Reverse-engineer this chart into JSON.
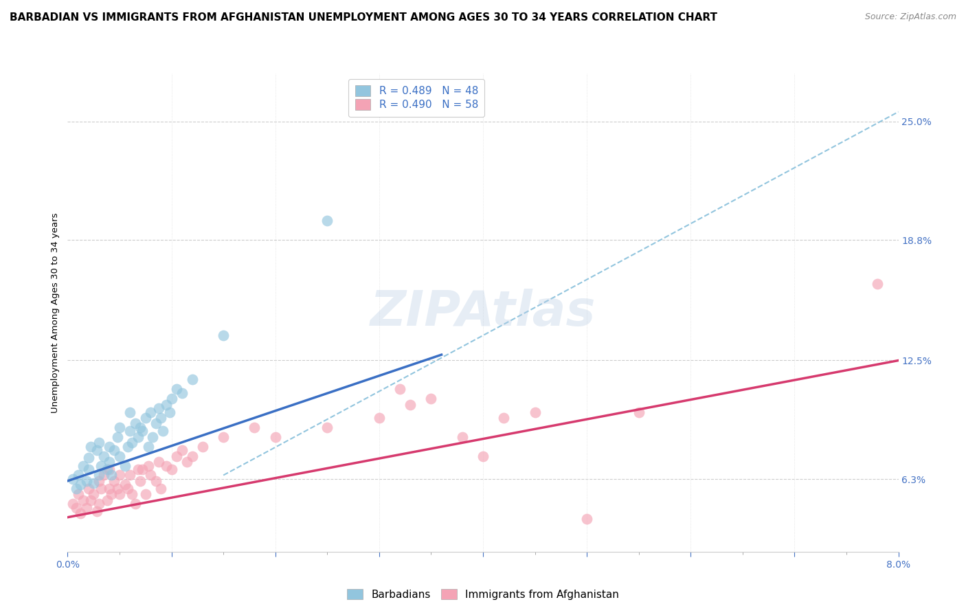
{
  "title": "BARBADIAN VS IMMIGRANTS FROM AFGHANISTAN UNEMPLOYMENT AMONG AGES 30 TO 34 YEARS CORRELATION CHART",
  "source": "Source: ZipAtlas.com",
  "xmin": 0.0,
  "xmax": 8.0,
  "ymin": 2.5,
  "ymax": 27.5,
  "ylabel_vals": [
    6.3,
    12.5,
    18.8,
    25.0
  ],
  "ylabel_label": "Unemployment Among Ages 30 to 34 years",
  "blue_color": "#92c5de",
  "pink_color": "#f4a3b5",
  "blue_line_color": "#3a6fc4",
  "pink_line_color": "#d63a6e",
  "dashed_line_color": "#92c5de",
  "legend_label_blue": "Barbadians",
  "legend_label_pink": "Immigrants from Afghanistan",
  "tick_color": "#4472c4",
  "title_fontsize": 11,
  "axis_label_fontsize": 9.5,
  "tick_fontsize": 10,
  "legend_fontsize": 11,
  "blue_scatter": [
    [
      0.05,
      6.3
    ],
    [
      0.08,
      5.8
    ],
    [
      0.1,
      6.5
    ],
    [
      0.12,
      6.0
    ],
    [
      0.15,
      7.0
    ],
    [
      0.18,
      6.2
    ],
    [
      0.2,
      6.8
    ],
    [
      0.2,
      7.4
    ],
    [
      0.22,
      8.0
    ],
    [
      0.25,
      6.1
    ],
    [
      0.28,
      7.8
    ],
    [
      0.3,
      6.5
    ],
    [
      0.3,
      8.2
    ],
    [
      0.32,
      7.0
    ],
    [
      0.35,
      7.5
    ],
    [
      0.38,
      6.8
    ],
    [
      0.4,
      8.0
    ],
    [
      0.4,
      7.2
    ],
    [
      0.42,
      6.5
    ],
    [
      0.45,
      7.8
    ],
    [
      0.48,
      8.5
    ],
    [
      0.5,
      7.5
    ],
    [
      0.5,
      9.0
    ],
    [
      0.55,
      7.0
    ],
    [
      0.58,
      8.0
    ],
    [
      0.6,
      8.8
    ],
    [
      0.6,
      9.8
    ],
    [
      0.62,
      8.2
    ],
    [
      0.65,
      9.2
    ],
    [
      0.68,
      8.5
    ],
    [
      0.7,
      9.0
    ],
    [
      0.72,
      8.8
    ],
    [
      0.75,
      9.5
    ],
    [
      0.78,
      8.0
    ],
    [
      0.8,
      9.8
    ],
    [
      0.82,
      8.5
    ],
    [
      0.85,
      9.2
    ],
    [
      0.88,
      10.0
    ],
    [
      0.9,
      9.5
    ],
    [
      0.92,
      8.8
    ],
    [
      0.95,
      10.2
    ],
    [
      0.98,
      9.8
    ],
    [
      1.0,
      10.5
    ],
    [
      1.05,
      11.0
    ],
    [
      1.1,
      10.8
    ],
    [
      1.2,
      11.5
    ],
    [
      1.5,
      13.8
    ],
    [
      2.5,
      19.8
    ]
  ],
  "pink_scatter": [
    [
      0.05,
      5.0
    ],
    [
      0.08,
      4.8
    ],
    [
      0.1,
      5.5
    ],
    [
      0.12,
      4.5
    ],
    [
      0.15,
      5.2
    ],
    [
      0.18,
      4.8
    ],
    [
      0.2,
      5.8
    ],
    [
      0.22,
      5.2
    ],
    [
      0.25,
      5.5
    ],
    [
      0.28,
      4.6
    ],
    [
      0.3,
      6.2
    ],
    [
      0.3,
      5.0
    ],
    [
      0.32,
      5.8
    ],
    [
      0.35,
      6.5
    ],
    [
      0.38,
      5.2
    ],
    [
      0.4,
      6.8
    ],
    [
      0.4,
      5.8
    ],
    [
      0.42,
      5.5
    ],
    [
      0.45,
      6.2
    ],
    [
      0.48,
      5.8
    ],
    [
      0.5,
      6.5
    ],
    [
      0.5,
      5.5
    ],
    [
      0.55,
      6.0
    ],
    [
      0.58,
      5.8
    ],
    [
      0.6,
      6.5
    ],
    [
      0.62,
      5.5
    ],
    [
      0.65,
      5.0
    ],
    [
      0.68,
      6.8
    ],
    [
      0.7,
      6.2
    ],
    [
      0.72,
      6.8
    ],
    [
      0.75,
      5.5
    ],
    [
      0.78,
      7.0
    ],
    [
      0.8,
      6.5
    ],
    [
      0.85,
      6.2
    ],
    [
      0.88,
      7.2
    ],
    [
      0.9,
      5.8
    ],
    [
      0.95,
      7.0
    ],
    [
      1.0,
      6.8
    ],
    [
      1.05,
      7.5
    ],
    [
      1.1,
      7.8
    ],
    [
      1.15,
      7.2
    ],
    [
      1.2,
      7.5
    ],
    [
      1.3,
      8.0
    ],
    [
      1.5,
      8.5
    ],
    [
      1.8,
      9.0
    ],
    [
      2.0,
      8.5
    ],
    [
      2.5,
      9.0
    ],
    [
      3.0,
      9.5
    ],
    [
      3.2,
      11.0
    ],
    [
      3.5,
      10.5
    ],
    [
      3.8,
      8.5
    ],
    [
      4.0,
      7.5
    ],
    [
      4.2,
      9.5
    ],
    [
      4.5,
      9.8
    ],
    [
      5.0,
      4.2
    ],
    [
      5.5,
      9.8
    ],
    [
      7.8,
      16.5
    ],
    [
      3.3,
      10.2
    ]
  ],
  "blue_line": {
    "x0": 0.0,
    "x1": 3.6,
    "y0": 6.2,
    "y1": 12.8
  },
  "pink_line": {
    "x0": 0.0,
    "x1": 8.0,
    "y0": 4.3,
    "y1": 12.5
  },
  "dashed_line": {
    "x0": 1.5,
    "x1": 8.0,
    "y0": 6.5,
    "y1": 25.5
  }
}
